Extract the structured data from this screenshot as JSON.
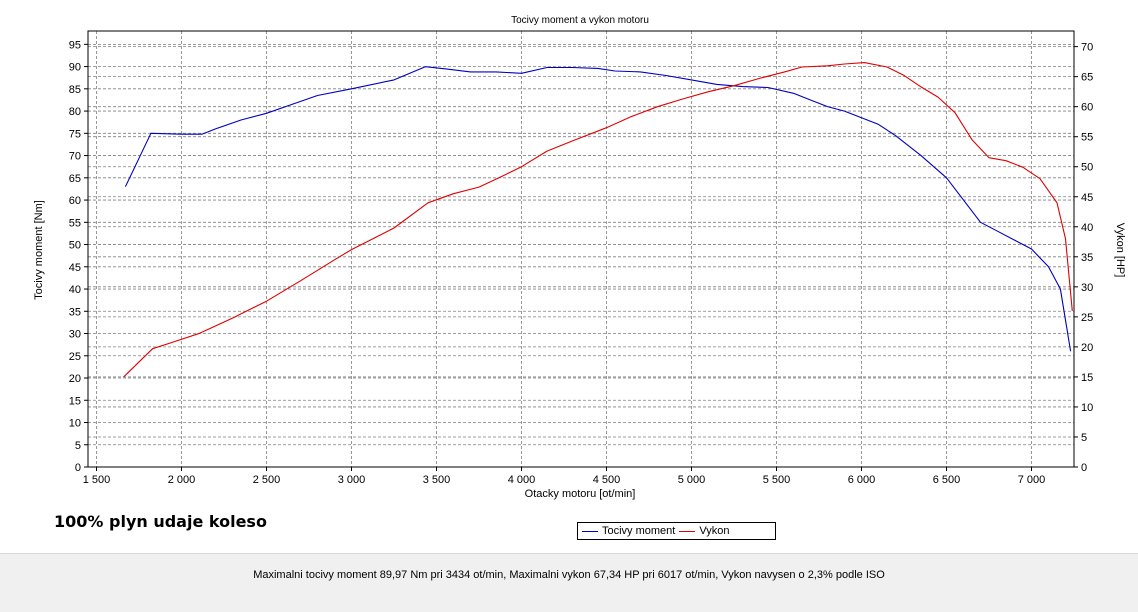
{
  "chart_data": {
    "type": "line",
    "title": "Tocivy moment a vykon motoru",
    "xlabel": "Otacky motoru [ot/min]",
    "ylabel_left": "Tocivy moment [Nm]",
    "ylabel_right": "Vykon [HP]",
    "xlim": [
      1450,
      7250
    ],
    "ylim_left": [
      0,
      98
    ],
    "ylim_right": [
      0,
      72.6
    ],
    "x_ticks": [
      1500,
      2000,
      2500,
      3000,
      3500,
      4000,
      4500,
      5000,
      5500,
      6000,
      6500,
      7000
    ],
    "x_tick_labels": [
      "1 500",
      "2 000",
      "2 500",
      "3 000",
      "3 500",
      "4 000",
      "4 500",
      "5 000",
      "5 500",
      "6 000",
      "6 500",
      "7 000"
    ],
    "y_left_ticks": [
      0,
      5,
      10,
      15,
      20,
      25,
      30,
      35,
      40,
      45,
      50,
      55,
      60,
      65,
      70,
      75,
      80,
      85,
      90,
      95
    ],
    "y_right_ticks": [
      0,
      5,
      10,
      15,
      20,
      25,
      30,
      35,
      40,
      45,
      50,
      55,
      60,
      65,
      70
    ],
    "grid": true,
    "legend_position": "bottom-center",
    "series": [
      {
        "name": "Tocivy moment",
        "axis": "left",
        "color": "#0000c0",
        "points": [
          [
            1670,
            63
          ],
          [
            1820,
            75
          ],
          [
            2000,
            74.8
          ],
          [
            2120,
            74.8
          ],
          [
            2200,
            76
          ],
          [
            2350,
            78
          ],
          [
            2500,
            79.5
          ],
          [
            2650,
            81.5
          ],
          [
            2800,
            83.5
          ],
          [
            3000,
            85
          ],
          [
            3250,
            87
          ],
          [
            3434,
            89.97
          ],
          [
            3550,
            89.5
          ],
          [
            3700,
            88.8
          ],
          [
            3850,
            88.8
          ],
          [
            4000,
            88.5
          ],
          [
            4150,
            89.8
          ],
          [
            4300,
            89.8
          ],
          [
            4450,
            89.6
          ],
          [
            4550,
            89
          ],
          [
            4700,
            88.8
          ],
          [
            4850,
            88
          ],
          [
            5000,
            87
          ],
          [
            5150,
            86
          ],
          [
            5300,
            85.5
          ],
          [
            5450,
            85.3
          ],
          [
            5600,
            84
          ],
          [
            5700,
            82.5
          ],
          [
            5800,
            81
          ],
          [
            5900,
            80
          ],
          [
            6000,
            78.5
          ],
          [
            6100,
            77
          ],
          [
            6200,
            74.5
          ],
          [
            6350,
            70
          ],
          [
            6500,
            65
          ],
          [
            6600,
            60
          ],
          [
            6700,
            55
          ],
          [
            6800,
            53
          ],
          [
            6900,
            51
          ],
          [
            7000,
            49
          ],
          [
            7100,
            45
          ],
          [
            7170,
            40
          ],
          [
            7230,
            26
          ]
        ]
      },
      {
        "name": "Vykon",
        "axis": "right",
        "color": "#e00000",
        "points": [
          [
            1660,
            15
          ],
          [
            1830,
            19.7
          ],
          [
            1950,
            20.8
          ],
          [
            2100,
            22.2
          ],
          [
            2300,
            24.8
          ],
          [
            2500,
            27.6
          ],
          [
            2700,
            31
          ],
          [
            2900,
            34.5
          ],
          [
            3000,
            36.2
          ],
          [
            3250,
            39.8
          ],
          [
            3450,
            44
          ],
          [
            3600,
            45.5
          ],
          [
            3750,
            46.6
          ],
          [
            3900,
            48.6
          ],
          [
            4000,
            50
          ],
          [
            4150,
            52.6
          ],
          [
            4300,
            54.3
          ],
          [
            4500,
            56.5
          ],
          [
            4650,
            58.4
          ],
          [
            4800,
            60
          ],
          [
            4950,
            61.3
          ],
          [
            5100,
            62.5
          ],
          [
            5250,
            63.5
          ],
          [
            5400,
            64.7
          ],
          [
            5550,
            65.8
          ],
          [
            5650,
            66.6
          ],
          [
            5800,
            66.8
          ],
          [
            5900,
            67.1
          ],
          [
            6017,
            67.34
          ],
          [
            6150,
            66.6
          ],
          [
            6250,
            65.2
          ],
          [
            6350,
            63.3
          ],
          [
            6450,
            61.6
          ],
          [
            6550,
            59
          ],
          [
            6650,
            54.5
          ],
          [
            6750,
            51.5
          ],
          [
            6850,
            51
          ],
          [
            6950,
            49.9
          ],
          [
            7050,
            48
          ],
          [
            7150,
            44
          ],
          [
            7200,
            38
          ],
          [
            7240,
            26
          ]
        ]
      }
    ]
  },
  "note_text": "100% plyn udaje koleso",
  "footer_text": "Maximalni tocivy moment 89,97 Nm pri 3434 ot/min,  Maximalni vykon 67,34 HP pri 6017 ot/min,  Vykon navysen o 2,3% podle ISO"
}
